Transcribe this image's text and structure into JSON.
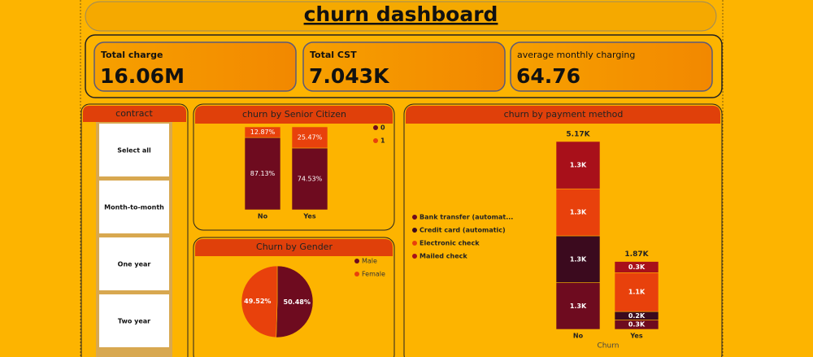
{
  "header": {
    "title": "churn dashboard"
  },
  "kpis": [
    {
      "label": "Total charge",
      "value": "16.06M"
    },
    {
      "label": "Total CST",
      "value": "7.043K"
    },
    {
      "label": "average monthly charging",
      "value": "64.76"
    }
  ],
  "slicer": {
    "title": "contract",
    "options": [
      "Select all",
      "Month-to-month",
      "One year",
      "Two year"
    ]
  },
  "chart_data": [
    {
      "type": "stacked-bar",
      "title": "churn by Senior Citizen",
      "categories": [
        "No",
        "Yes"
      ],
      "series": [
        {
          "name": "0",
          "color": "#6e0b1f",
          "values": [
            87.13,
            74.53
          ],
          "value_labels": [
            "87.13%",
            "74.53%"
          ]
        },
        {
          "name": "1",
          "color": "#e8410c",
          "values": [
            12.87,
            25.47
          ],
          "value_labels": [
            "12.87%",
            "25.47%"
          ]
        }
      ]
    },
    {
      "type": "pie",
      "title": "Churn by Gender",
      "categories": [
        "Male",
        "Female"
      ],
      "values": [
        50.48,
        49.52
      ],
      "value_labels": [
        "50.48%",
        "49.52%"
      ],
      "colors": [
        "#6e0b1f",
        "#e8410c"
      ]
    },
    {
      "type": "stacked-bar",
      "title": "churn by payment method",
      "x_label": "Churn",
      "categories": [
        "No",
        "Yes"
      ],
      "totals": [
        5174,
        1869
      ],
      "total_labels": [
        "5.17K",
        "1.87K"
      ],
      "series": [
        {
          "name": "Bank transfer (automat...",
          "color": "#6e0b1f",
          "values": [
            1286,
            258
          ],
          "value_labels": [
            "1.3K",
            "0.3K"
          ]
        },
        {
          "name": "Credit card (automatic)",
          "color": "#3b0a1e",
          "values": [
            1290,
            232
          ],
          "value_labels": [
            "1.3K",
            "0.2K"
          ]
        },
        {
          "name": "Electronic check",
          "color": "#e8410c",
          "values": [
            1294,
            1071
          ],
          "value_labels": [
            "1.3K",
            "1.1K"
          ]
        },
        {
          "name": "Mailed check",
          "color": "#a8101a",
          "values": [
            1304,
            308
          ],
          "value_labels": [
            "1.3K",
            "0.3K"
          ]
        }
      ]
    }
  ]
}
